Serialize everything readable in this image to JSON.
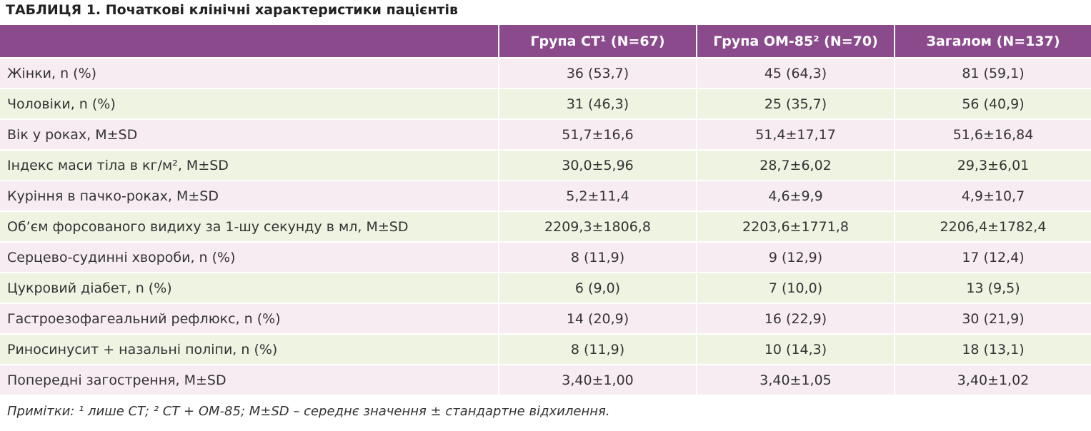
{
  "title": "ТАБЛИЦЯ 1. Початкові клінічні характеристики пацієнтів",
  "table": {
    "header": [
      "",
      "Група СТ¹ (N=67)",
      "Група ОМ-85² (N=70)",
      "Загалом (N=137)"
    ],
    "rows": [
      [
        "Жінки, n (%)",
        "36 (53,7)",
        "45 (64,3)",
        "81 (59,1)"
      ],
      [
        "Чоловіки, n (%)",
        "31 (46,3)",
        "25 (35,7)",
        "56 (40,9)"
      ],
      [
        "Вік у роках, M±SD",
        "51,7±16,6",
        "51,4±17,17",
        "51,6±16,84"
      ],
      [
        "Індекс маси тіла в кг/м², M±SD",
        "30,0±5,96",
        "28,7±6,02",
        "29,3±6,01"
      ],
      [
        "Куріння в пачко-роках, M±SD",
        "5,2±11,4",
        "4,6±9,9",
        "4,9±10,7"
      ],
      [
        "Об’єм форсованого видиху за 1-шу секунду в мл, M±SD",
        "2209,3±1806,8",
        "2203,6±1771,8",
        "2206,4±1782,4"
      ],
      [
        "Серцево-судинні хвороби, n (%)",
        "8 (11,9)",
        "9 (12,9)",
        "17 (12,4)"
      ],
      [
        "Цукровий діабет, n (%)",
        "6 (9,0)",
        "7 (10,0)",
        "13 (9,5)"
      ],
      [
        "Гастроезофагеальний рефлюкс, n (%)",
        "14 (20,9)",
        "16 (22,9)",
        "30 (21,9)"
      ],
      [
        "Риносинусит + назальні поліпи, n (%)",
        "8 (11,9)",
        "10 (14,3)",
        "18 (13,1)"
      ],
      [
        "Попередні загострення, M±SD",
        "3,40±1,00",
        "3,40±1,05",
        "3,40±1,02"
      ]
    ]
  },
  "note": "Примітки: ¹ лише СТ; ² СТ + ОМ-85; M±SD – середнє значення ± стандартне відхилення."
}
